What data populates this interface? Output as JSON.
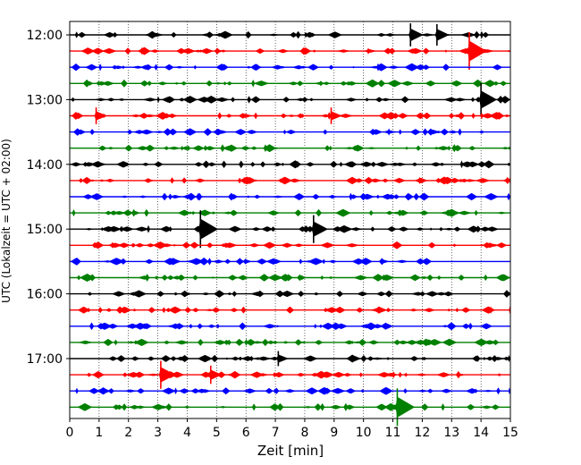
{
  "chart_data": {
    "type": "line",
    "subtype": "helicorder",
    "xlabel": "Zeit  [min]",
    "ylabel": "UTC (Lokalzeit = UTC + 02:00)",
    "xlim": [
      0,
      15
    ],
    "x_ticks": [
      "0",
      "1",
      "2",
      "3",
      "4",
      "5",
      "6",
      "7",
      "8",
      "9",
      "10",
      "11",
      "12",
      "13",
      "14",
      "15"
    ],
    "y_tick_labels": [
      "12:00",
      "13:00",
      "14:00",
      "15:00",
      "16:00",
      "17:00"
    ],
    "grid": "vertical-dotted",
    "trace_interval_minutes": 15,
    "trace_colors": [
      "#000000",
      "#ff0000",
      "#0000ff",
      "#008000"
    ],
    "traces": [
      {
        "start": "12:00",
        "color": "#000000",
        "events": [
          {
            "t": 11.6,
            "amp": 0.55
          },
          {
            "t": 12.5,
            "amp": 0.5
          }
        ]
      },
      {
        "start": "12:15",
        "color": "#ff0000",
        "events": [
          {
            "t": 13.6,
            "amp": 1.0
          }
        ]
      },
      {
        "start": "12:30",
        "color": "#0000ff",
        "events": []
      },
      {
        "start": "12:45",
        "color": "#008000",
        "events": []
      },
      {
        "start": "13:00",
        "color": "#000000",
        "events": [
          {
            "t": 14.0,
            "amp": 0.85
          }
        ]
      },
      {
        "start": "13:15",
        "color": "#ff0000",
        "events": [
          {
            "t": 0.9,
            "amp": 0.35
          },
          {
            "t": 8.9,
            "amp": 0.35
          }
        ]
      },
      {
        "start": "13:30",
        "color": "#0000ff",
        "events": []
      },
      {
        "start": "13:45",
        "color": "#008000",
        "events": []
      },
      {
        "start": "14:00",
        "color": "#000000",
        "events": []
      },
      {
        "start": "14:15",
        "color": "#ff0000",
        "events": []
      },
      {
        "start": "14:30",
        "color": "#0000ff",
        "events": []
      },
      {
        "start": "14:45",
        "color": "#008000",
        "events": []
      },
      {
        "start": "15:00",
        "color": "#000000",
        "events": [
          {
            "t": 4.45,
            "amp": 1.0
          },
          {
            "t": 8.3,
            "amp": 0.7
          }
        ]
      },
      {
        "start": "15:15",
        "color": "#ff0000",
        "events": []
      },
      {
        "start": "15:30",
        "color": "#0000ff",
        "events": []
      },
      {
        "start": "15:45",
        "color": "#008000",
        "events": []
      },
      {
        "start": "16:00",
        "color": "#000000",
        "events": []
      },
      {
        "start": "16:15",
        "color": "#ff0000",
        "events": []
      },
      {
        "start": "16:30",
        "color": "#0000ff",
        "events": []
      },
      {
        "start": "16:45",
        "color": "#008000",
        "events": []
      },
      {
        "start": "17:00",
        "color": "#000000",
        "events": [
          {
            "t": 7.1,
            "amp": 0.3
          }
        ]
      },
      {
        "start": "17:15",
        "color": "#ff0000",
        "events": [
          {
            "t": 3.1,
            "amp": 0.7
          },
          {
            "t": 4.8,
            "amp": 0.4
          }
        ]
      },
      {
        "start": "17:30",
        "color": "#0000ff",
        "events": []
      },
      {
        "start": "17:45",
        "color": "#008000",
        "events": [
          {
            "t": 11.15,
            "amp": 1.0
          }
        ]
      }
    ]
  }
}
